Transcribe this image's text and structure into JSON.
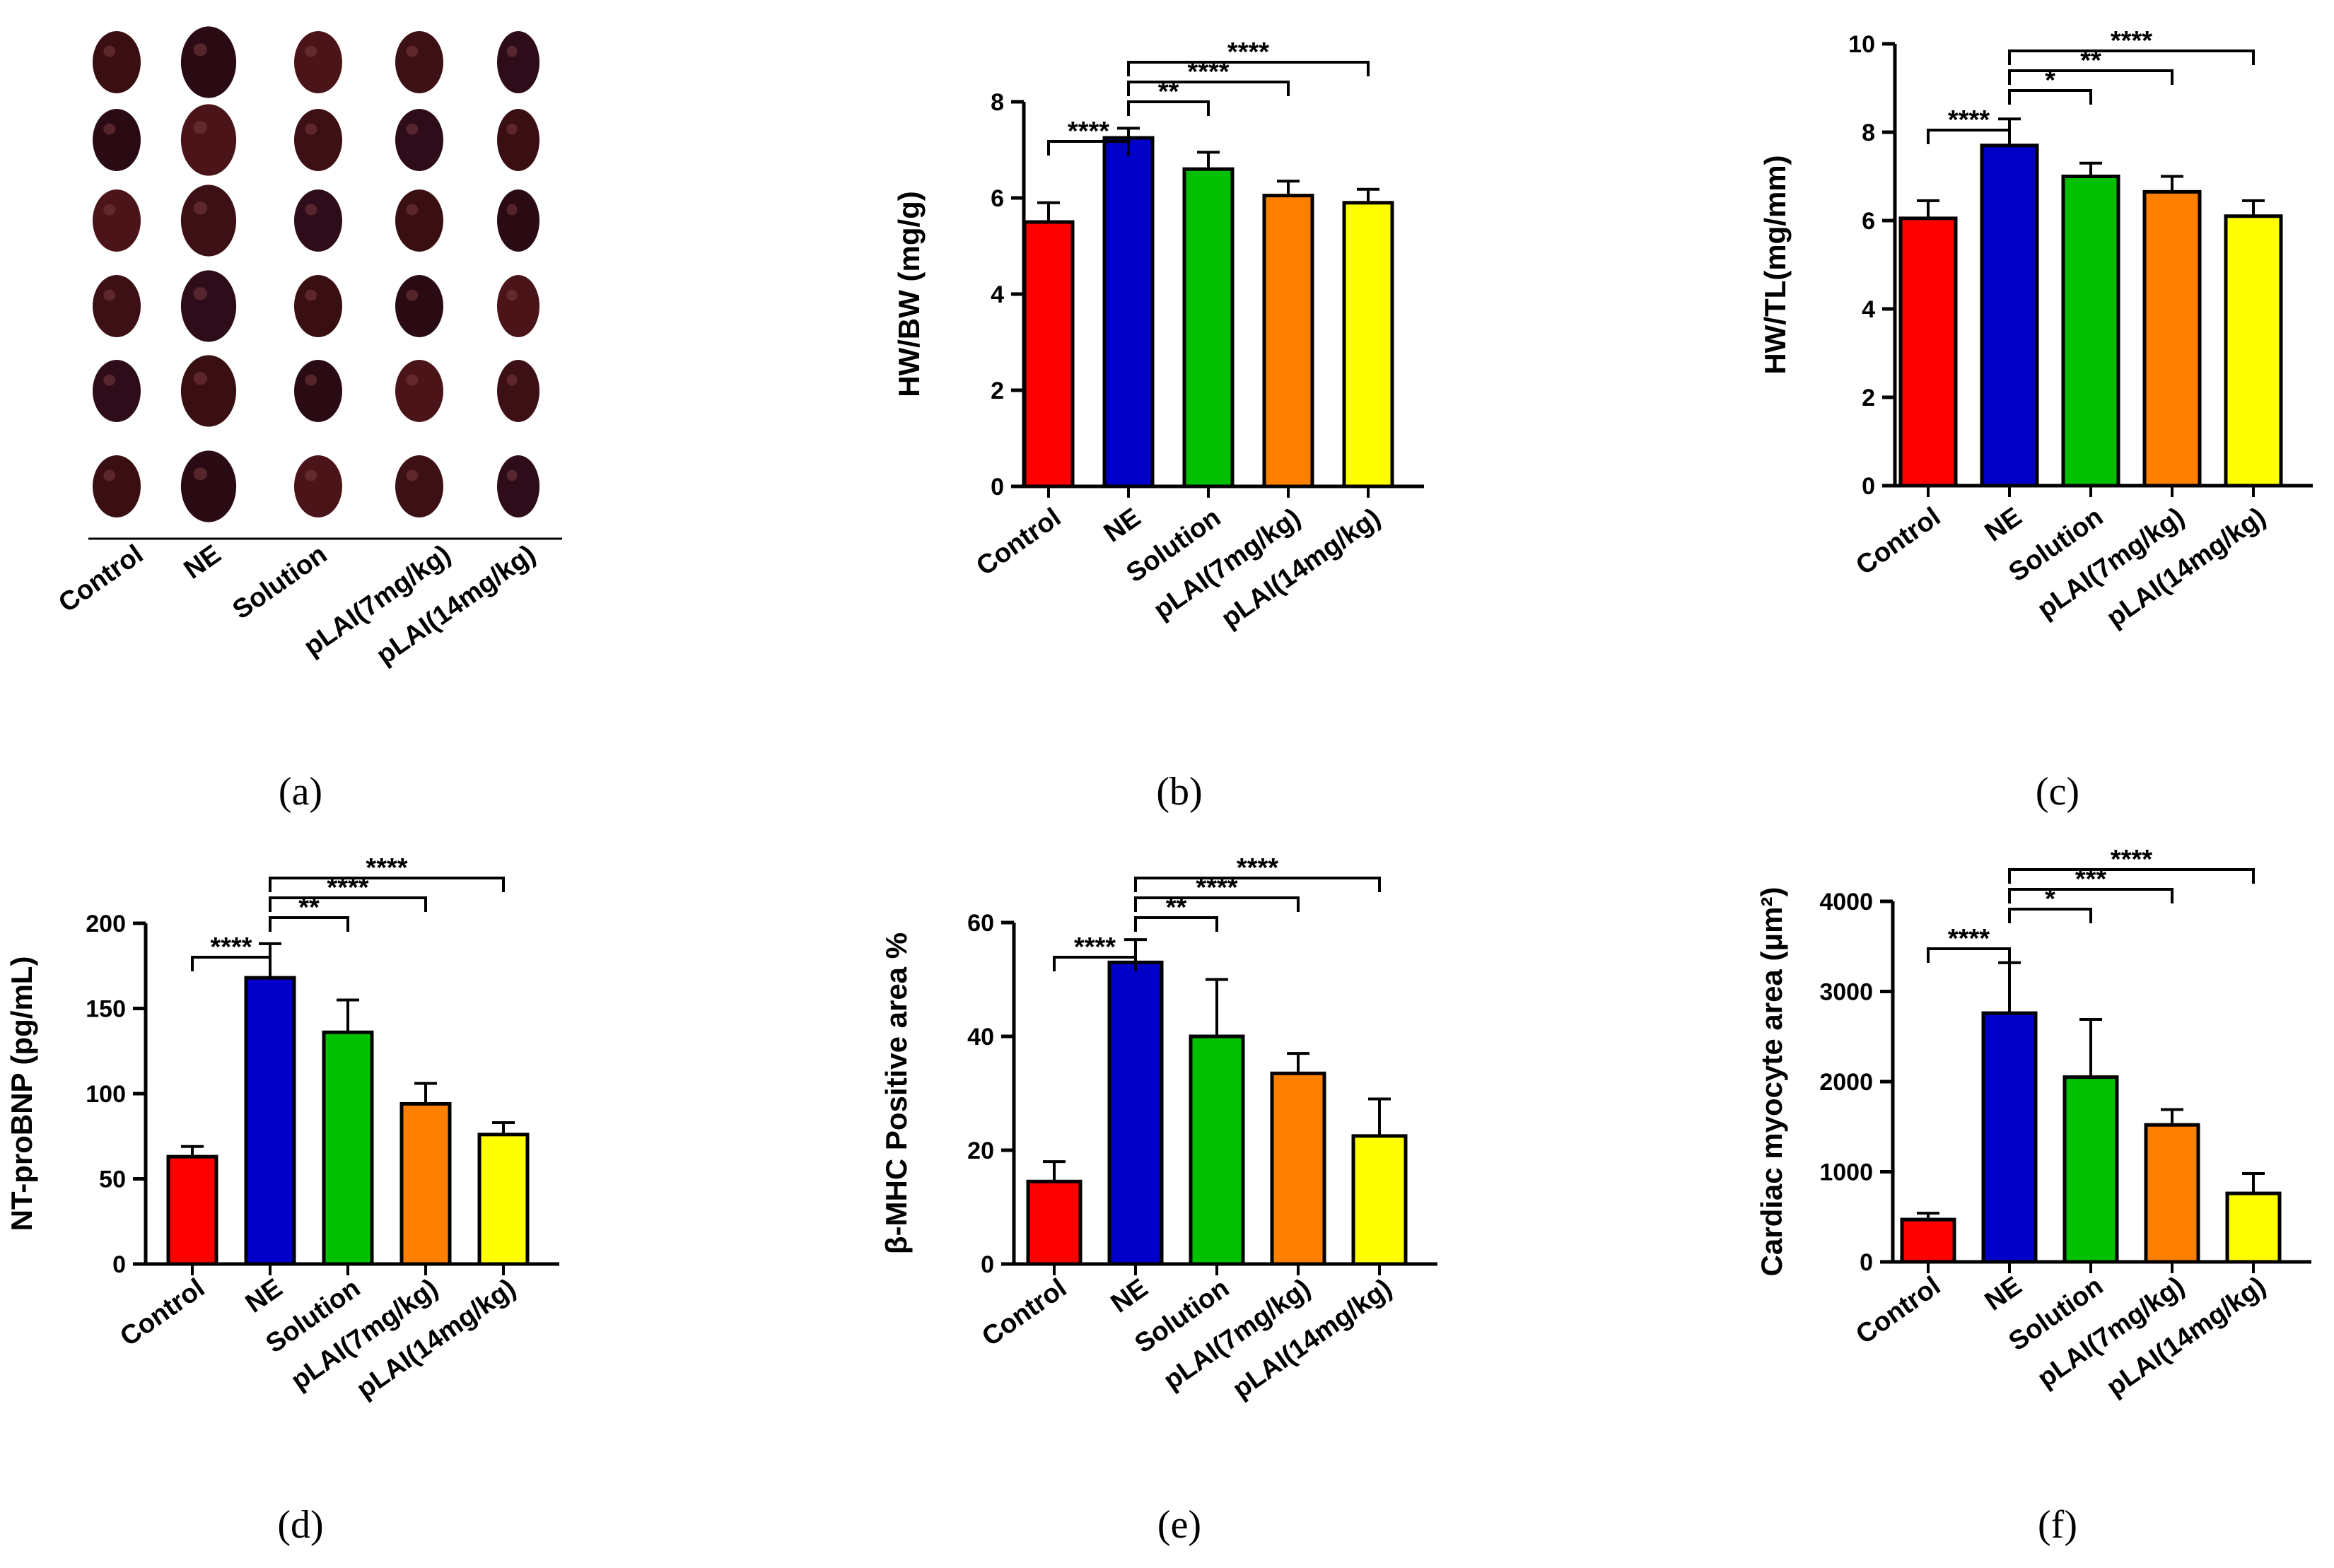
{
  "figure": {
    "panel_labels": [
      "(a)",
      "(b)",
      "(c)",
      "(d)",
      "(e)",
      "(f)"
    ],
    "photo_panel": {
      "description_label": "Control",
      "categories": [
        "Control",
        "NE",
        "Solution",
        "pLAI(7mg/kg)",
        "pLAI(14mg/kg)"
      ]
    }
  },
  "chart_data": [
    {
      "panel": "b",
      "type": "bar",
      "categories": [
        "Control",
        "NE",
        "Solution",
        "pLAI(7mg/kg)",
        "pLAI(14mg/kg)"
      ],
      "values": [
        5.5,
        7.25,
        6.6,
        6.05,
        5.9
      ],
      "errors": [
        0.4,
        0.2,
        0.35,
        0.3,
        0.28
      ],
      "ylabel": "HW/BW (mg/g)",
      "ylim": [
        0,
        8
      ],
      "yticks": [
        0,
        2,
        4,
        6,
        8
      ],
      "colors": [
        "#ff0000",
        "#0000c8",
        "#00c000",
        "#ff8000",
        "#ffff00"
      ],
      "significance": [
        {
          "from": 0,
          "to": 1,
          "label": "****"
        },
        {
          "from": 1,
          "to": 2,
          "label": "**"
        },
        {
          "from": 1,
          "to": 3,
          "label": "****"
        },
        {
          "from": 1,
          "to": 4,
          "label": "****"
        }
      ]
    },
    {
      "panel": "c",
      "type": "bar",
      "categories": [
        "Control",
        "NE",
        "Solution",
        "pLAI(7mg/kg)",
        "pLAI(14mg/kg)"
      ],
      "values": [
        6.05,
        7.7,
        7.0,
        6.65,
        6.1
      ],
      "errors": [
        0.4,
        0.6,
        0.3,
        0.35,
        0.35
      ],
      "ylabel": "HW/TL(mg/mm)",
      "ylim": [
        0,
        10
      ],
      "yticks": [
        0,
        2,
        4,
        6,
        8,
        10
      ],
      "colors": [
        "#ff0000",
        "#0000c8",
        "#00c000",
        "#ff8000",
        "#ffff00"
      ],
      "significance": [
        {
          "from": 0,
          "to": 1,
          "label": "****"
        },
        {
          "from": 1,
          "to": 2,
          "label": "*"
        },
        {
          "from": 1,
          "to": 3,
          "label": "**"
        },
        {
          "from": 1,
          "to": 4,
          "label": "****"
        }
      ]
    },
    {
      "panel": "d",
      "type": "bar",
      "categories": [
        "Control",
        "NE",
        "Solution",
        "pLAI(7mg/kg)",
        "pLAI(14mg/kg)"
      ],
      "values": [
        63,
        168,
        136,
        94,
        76
      ],
      "errors": [
        6,
        20,
        19,
        12,
        7
      ],
      "ylabel": "NT-proBNP (pg/mL)",
      "ylim": [
        0,
        200
      ],
      "yticks": [
        0,
        50,
        100,
        150,
        200
      ],
      "colors": [
        "#ff0000",
        "#0000c8",
        "#00c000",
        "#ff8000",
        "#ffff00"
      ],
      "significance": [
        {
          "from": 0,
          "to": 1,
          "label": "****"
        },
        {
          "from": 1,
          "to": 2,
          "label": "**"
        },
        {
          "from": 1,
          "to": 3,
          "label": "****"
        },
        {
          "from": 1,
          "to": 4,
          "label": "****"
        }
      ]
    },
    {
      "panel": "e",
      "type": "bar",
      "categories": [
        "Control",
        "NE",
        "Solution",
        "pLAI(7mg/kg)",
        "pLAI(14mg/kg)"
      ],
      "values": [
        14.5,
        53,
        40,
        33.5,
        22.5
      ],
      "errors": [
        3.5,
        4,
        10,
        3.5,
        6.5
      ],
      "ylabel": "β-MHC Positive area %",
      "ylim": [
        0,
        60
      ],
      "yticks": [
        0,
        20,
        40,
        60
      ],
      "colors": [
        "#ff0000",
        "#0000c8",
        "#00c000",
        "#ff8000",
        "#ffff00"
      ],
      "significance": [
        {
          "from": 0,
          "to": 1,
          "label": "****"
        },
        {
          "from": 1,
          "to": 2,
          "label": "**"
        },
        {
          "from": 1,
          "to": 3,
          "label": "****"
        },
        {
          "from": 1,
          "to": 4,
          "label": "****"
        }
      ]
    },
    {
      "panel": "f",
      "type": "bar",
      "categories": [
        "Control",
        "NE",
        "Solution",
        "pLAI(7mg/kg)",
        "pLAI(14mg/kg)"
      ],
      "values": [
        470,
        2760,
        2050,
        1520,
        760
      ],
      "errors": [
        70,
        560,
        640,
        170,
        220
      ],
      "ylabel": "Cardiac myocyte area (μm²)",
      "ylim": [
        0,
        4000
      ],
      "yticks": [
        0,
        1000,
        2000,
        3000,
        4000
      ],
      "colors": [
        "#ff0000",
        "#0000c8",
        "#00c000",
        "#ff8000",
        "#ffff00"
      ],
      "significance": [
        {
          "from": 0,
          "to": 1,
          "label": "****"
        },
        {
          "from": 1,
          "to": 2,
          "label": "*"
        },
        {
          "from": 1,
          "to": 3,
          "label": "***"
        },
        {
          "from": 1,
          "to": 4,
          "label": "****"
        }
      ]
    }
  ]
}
